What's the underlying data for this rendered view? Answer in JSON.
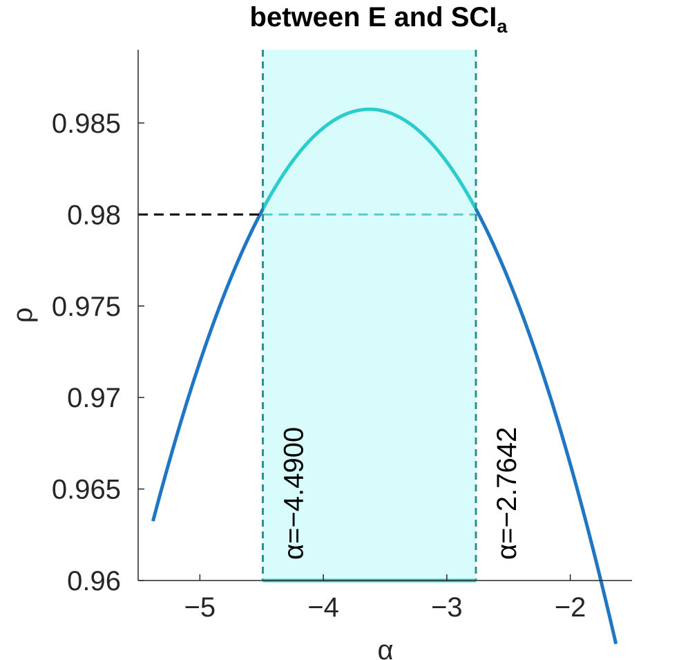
{
  "chart_data": {
    "type": "line",
    "title": "between E and SCI",
    "title_subscript": "a",
    "xlabel": "α",
    "ylabel": "ρ",
    "xlim": [
      -5.5,
      -1.5
    ],
    "ylim": [
      0.96,
      0.989
    ],
    "xticks": [
      -5,
      -4,
      -3,
      -2
    ],
    "xtick_labels": [
      "−5",
      "−4",
      "−3",
      "−2"
    ],
    "yticks": [
      0.96,
      0.965,
      0.97,
      0.975,
      0.98,
      0.985
    ],
    "ytick_labels": [
      "0.96",
      "0.965",
      "0.97",
      "0.975",
      "0.98",
      "0.985"
    ],
    "grid": false,
    "series": [
      {
        "curve": "parabola",
        "x_start": -5.38,
        "x_end": -1.63,
        "peak_x": -3.627,
        "peak_y": 0.98575,
        "y_at_edges": 0.96,
        "color": "#1f77c4",
        "highlight_color": "#2ccccc"
      }
    ],
    "threshold": {
      "y": 0.98,
      "color": "#000000"
    },
    "interval": {
      "left": -4.49,
      "right": -2.7642,
      "fill_color": "#d8fcfc",
      "line_color": "#2a8f8f",
      "baseline_color": "#2ccccc"
    },
    "annotations": [
      {
        "x": -4.49,
        "text": "α=−4.4900"
      },
      {
        "x": -2.7642,
        "text": "α=−2.7642"
      }
    ]
  }
}
